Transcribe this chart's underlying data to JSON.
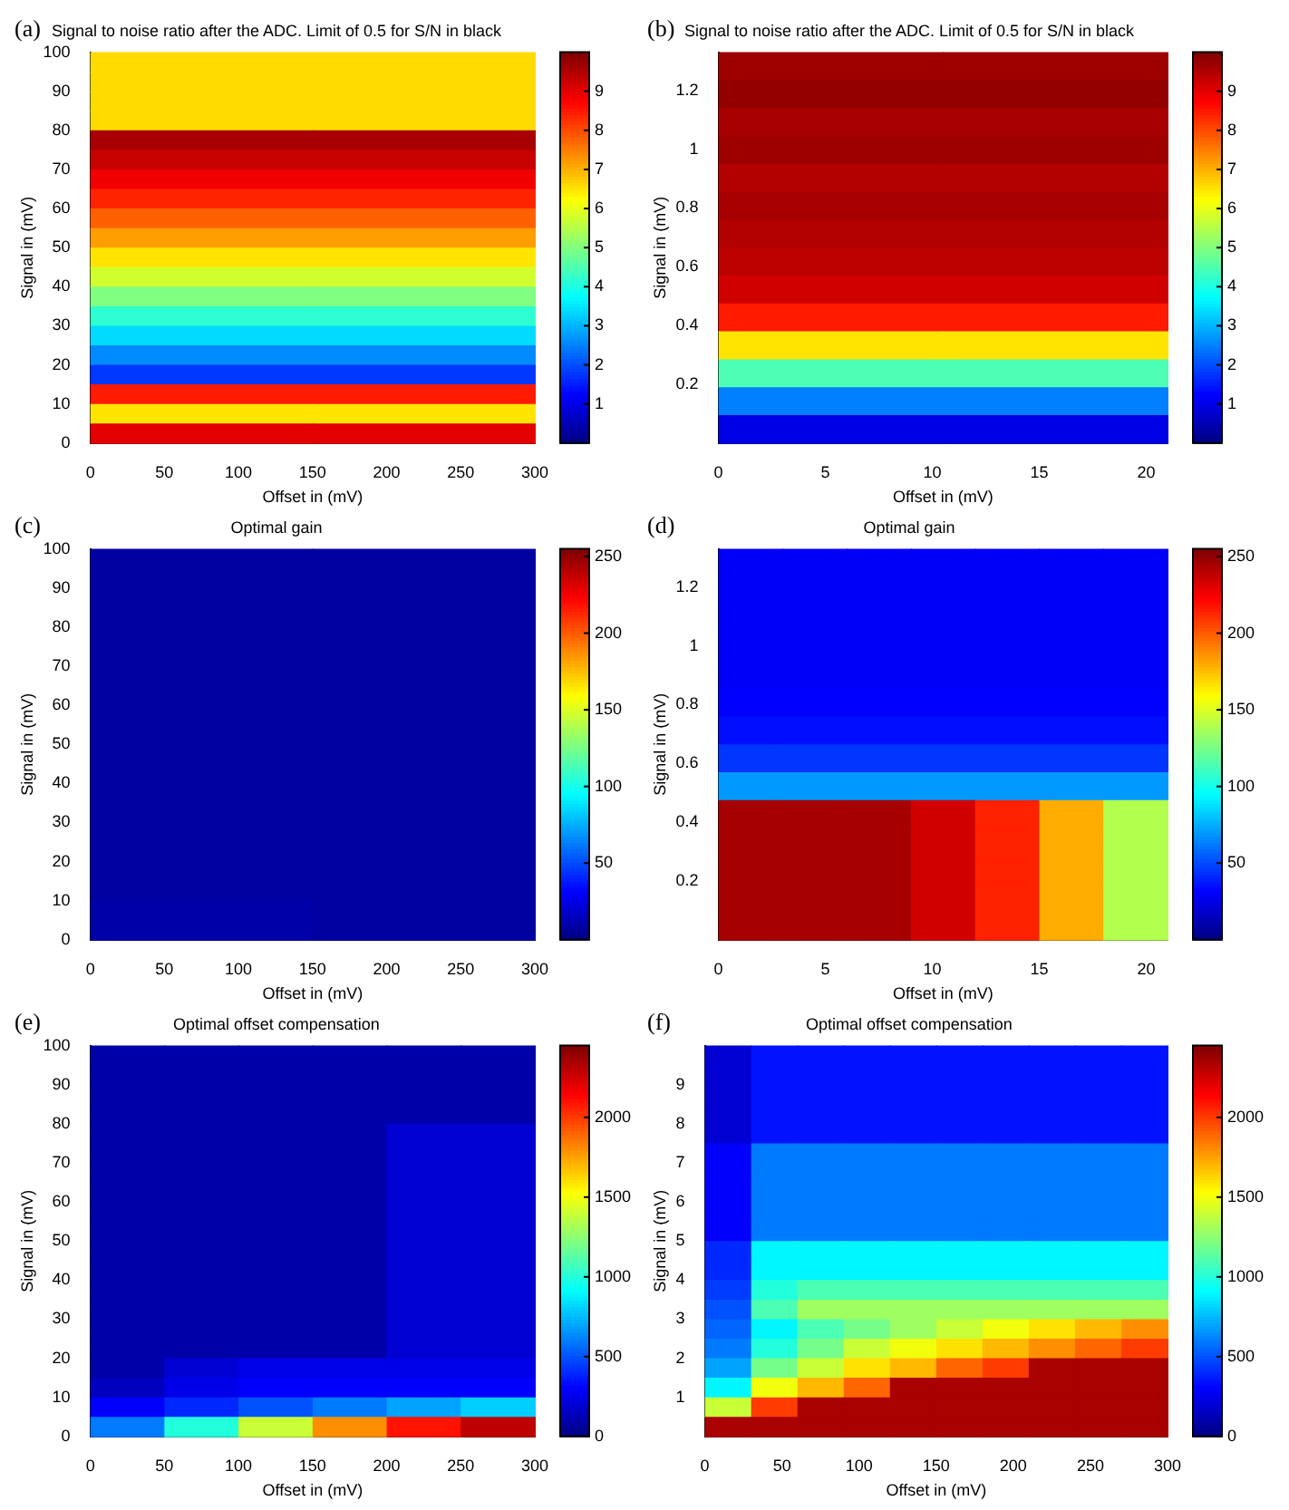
{
  "chart_data": [
    {
      "type": "heatmap",
      "title": "Signal to noise ratio after the ADC. Limit of 0.5 for S/N in black",
      "xlabel": "Offset in (mV)",
      "ylabel": "Signal in (mV)",
      "annotations": [
        "(a)"
      ],
      "xlim": [
        0,
        300
      ],
      "xticks": [
        0,
        50,
        100,
        150,
        200,
        250,
        300
      ],
      "ylim": [
        0,
        100
      ],
      "yticks": [
        0,
        10,
        20,
        30,
        40,
        50,
        60,
        70,
        80,
        90,
        100
      ],
      "clim": [
        0,
        10
      ],
      "cticks": [
        1,
        2,
        3,
        4,
        5,
        6,
        7,
        8,
        9
      ],
      "x": [
        75,
        225
      ],
      "y": [
        97.5,
        92.5,
        87.5,
        82.5,
        77.5,
        72.5,
        67.5,
        62.5,
        57.5,
        52.5,
        47.5,
        42.5,
        37.5,
        32.5,
        27.5,
        22.5,
        17.5,
        12.5,
        7.5,
        2.5
      ],
      "cells": [
        [
          6.6,
          6.6
        ],
        [
          6.6,
          6.6
        ],
        [
          6.6,
          6.6
        ],
        [
          6.6,
          6.6
        ],
        [
          9.6,
          9.6
        ],
        [
          9.3,
          9.3
        ],
        [
          8.9,
          8.9
        ],
        [
          8.4,
          8.4
        ],
        [
          7.8,
          7.8
        ],
        [
          7.2,
          7.2
        ],
        [
          6.5,
          6.5
        ],
        [
          5.8,
          5.8
        ],
        [
          5,
          5
        ],
        [
          4.2,
          4.2
        ],
        [
          3.4,
          3.4
        ],
        [
          2.6,
          2.6
        ],
        [
          1.8,
          1.8
        ],
        [
          8.5,
          8.5
        ],
        [
          6.5,
          6.5
        ],
        [
          9,
          9
        ]
      ]
    },
    {
      "type": "heatmap",
      "title": "Signal to noise ratio after the ADC. Limit of 0.5 for S/N in black",
      "xlabel": "Offset in (mV)",
      "ylabel": "Signal in (mV)",
      "annotations": [
        "(b)"
      ],
      "xlim": [
        0,
        21
      ],
      "xticks": [
        0,
        5,
        10,
        15,
        20
      ],
      "ylim": [
        0,
        1.33
      ],
      "yticks": [
        0.2,
        0.4,
        0.6,
        0.8,
        1,
        1.2
      ],
      "clim": [
        0,
        10
      ],
      "cticks": [
        1,
        2,
        3,
        4,
        5,
        6,
        7,
        8,
        9
      ],
      "x": [
        5.25,
        15.75
      ],
      "y": [
        1.2825,
        1.1875,
        1.0925,
        0.9975,
        0.9025,
        0.8075,
        0.7125,
        0.6175,
        0.5225,
        0.4275,
        0.3325,
        0.2375,
        0.1425,
        0.0475
      ],
      "cells": [
        [
          9.7,
          9.7
        ],
        [
          9.8,
          9.8
        ],
        [
          9.6,
          9.6
        ],
        [
          9.7,
          9.7
        ],
        [
          9.5,
          9.5
        ],
        [
          9.6,
          9.6
        ],
        [
          9.5,
          9.5
        ],
        [
          9.4,
          9.4
        ],
        [
          9.2,
          9.2
        ],
        [
          8.5,
          8.5
        ],
        [
          6.5,
          6.5
        ],
        [
          4.5,
          4.5
        ],
        [
          2.5,
          2.5
        ],
        [
          1,
          1
        ]
      ]
    },
    {
      "type": "heatmap",
      "title": "Optimal gain",
      "xlabel": "Offset in (mV)",
      "ylabel": "Signal in (mV)",
      "annotations": [
        "(c)"
      ],
      "xlim": [
        0,
        300
      ],
      "xticks": [
        0,
        50,
        100,
        150,
        200,
        250,
        300
      ],
      "ylim": [
        0,
        100
      ],
      "yticks": [
        0,
        10,
        20,
        30,
        40,
        50,
        60,
        70,
        80,
        90,
        100
      ],
      "clim": [
        0,
        255
      ],
      "cticks": [
        50,
        100,
        150,
        200,
        250
      ],
      "x": [
        75,
        225
      ],
      "y": [
        95,
        85,
        75,
        65,
        55,
        45,
        35,
        25,
        15,
        5
      ],
      "cells": [
        [
          8,
          8
        ],
        [
          8,
          8
        ],
        [
          8,
          8
        ],
        [
          8,
          8
        ],
        [
          8,
          8
        ],
        [
          8,
          8
        ],
        [
          8,
          8
        ],
        [
          8,
          8
        ],
        [
          8,
          8
        ],
        [
          10,
          8
        ]
      ]
    },
    {
      "type": "heatmap",
      "title": "Optimal gain",
      "xlabel": "Offset in (mV)",
      "ylabel": "Signal in (mV)",
      "annotations": [
        "(d)"
      ],
      "xlim": [
        0,
        21
      ],
      "xticks": [
        0,
        5,
        10,
        15,
        20
      ],
      "ylim": [
        0,
        1.33
      ],
      "yticks": [
        0.2,
        0.4,
        0.6,
        0.8,
        1,
        1.2
      ],
      "clim": [
        0,
        255
      ],
      "cticks": [
        50,
        100,
        150,
        200,
        250
      ],
      "x": [
        1.5,
        4.5,
        7.5,
        10.5,
        13.5,
        16.5,
        19.5
      ],
      "y": [
        1.2825,
        1.1875,
        1.0925,
        0.9975,
        0.9025,
        0.8075,
        0.7125,
        0.6175,
        0.5225,
        0.4275,
        0.3325,
        0.2375,
        0.1425,
        0.0475
      ],
      "cells": [
        [
          30,
          30,
          30,
          30,
          30,
          30,
          30
        ],
        [
          30,
          30,
          30,
          30,
          30,
          30,
          30
        ],
        [
          30,
          30,
          30,
          30,
          30,
          30,
          30
        ],
        [
          30,
          30,
          30,
          30,
          30,
          30,
          30
        ],
        [
          30,
          30,
          30,
          30,
          30,
          30,
          30
        ],
        [
          32,
          32,
          32,
          32,
          32,
          32,
          32
        ],
        [
          35,
          35,
          35,
          35,
          35,
          35,
          35
        ],
        [
          45,
          45,
          45,
          45,
          45,
          45,
          45
        ],
        [
          70,
          70,
          70,
          70,
          70,
          70,
          70
        ],
        [
          245,
          245,
          245,
          235,
          215,
          180,
          140
        ],
        [
          245,
          245,
          245,
          235,
          215,
          180,
          140
        ],
        [
          245,
          245,
          245,
          235,
          215,
          180,
          140
        ],
        [
          245,
          245,
          245,
          235,
          215,
          180,
          140
        ],
        [
          245,
          245,
          245,
          235,
          215,
          180,
          140
        ]
      ]
    },
    {
      "type": "heatmap",
      "title": "Optimal offset compensation",
      "xlabel": "Offset in (mV)",
      "ylabel": "Signal in (mV)",
      "annotations": [
        "(e)"
      ],
      "xlim": [
        0,
        300
      ],
      "xticks": [
        0,
        50,
        100,
        150,
        200,
        250,
        300
      ],
      "ylim": [
        0,
        100
      ],
      "yticks": [
        0,
        10,
        20,
        30,
        40,
        50,
        60,
        70,
        80,
        90,
        100
      ],
      "clim": [
        0,
        2450
      ],
      "cticks": [
        0,
        500,
        1000,
        1500,
        2000
      ],
      "x": [
        25,
        75,
        125,
        175,
        225,
        275
      ],
      "y": [
        97.5,
        92.5,
        87.5,
        82.5,
        77.5,
        72.5,
        67.5,
        62.5,
        57.5,
        52.5,
        47.5,
        42.5,
        37.5,
        32.5,
        27.5,
        22.5,
        17.5,
        12.5,
        7.5,
        2.5
      ],
      "cells": [
        [
          100,
          100,
          100,
          100,
          100,
          100
        ],
        [
          100,
          100,
          100,
          100,
          100,
          100
        ],
        [
          100,
          100,
          100,
          100,
          100,
          100
        ],
        [
          100,
          100,
          100,
          100,
          100,
          100
        ],
        [
          100,
          100,
          100,
          100,
          200,
          200
        ],
        [
          100,
          100,
          100,
          100,
          200,
          200
        ],
        [
          100,
          100,
          100,
          100,
          200,
          200
        ],
        [
          100,
          100,
          100,
          100,
          200,
          200
        ],
        [
          100,
          100,
          100,
          100,
          200,
          200
        ],
        [
          100,
          100,
          100,
          100,
          200,
          200
        ],
        [
          100,
          100,
          100,
          100,
          200,
          200
        ],
        [
          100,
          100,
          100,
          100,
          200,
          200
        ],
        [
          100,
          100,
          100,
          100,
          200,
          200
        ],
        [
          100,
          100,
          100,
          100,
          200,
          200
        ],
        [
          100,
          100,
          100,
          100,
          200,
          200
        ],
        [
          100,
          100,
          100,
          100,
          200,
          200
        ],
        [
          100,
          200,
          250,
          250,
          250,
          250
        ],
        [
          150,
          250,
          300,
          300,
          300,
          300
        ],
        [
          300,
          400,
          500,
          600,
          700,
          800
        ],
        [
          600,
          1000,
          1400,
          1800,
          2100,
          2300
        ]
      ]
    },
    {
      "type": "heatmap",
      "title": "Optimal offset compensation",
      "xlabel": "Offset in (mV)",
      "ylabel": "Signal in (mV)",
      "annotations": [
        "(f)"
      ],
      "xlim": [
        0,
        300
      ],
      "xticks": [
        0,
        50,
        100,
        150,
        200,
        250,
        300
      ],
      "ylim": [
        0,
        10
      ],
      "yticks": [
        1,
        2,
        3,
        4,
        5,
        6,
        7,
        8,
        9
      ],
      "clim": [
        0,
        2450
      ],
      "cticks": [
        0,
        500,
        1000,
        1500,
        2000
      ],
      "x": [
        15,
        45,
        75,
        105,
        135,
        165,
        195,
        225,
        255,
        285
      ],
      "y": [
        9.75,
        9.25,
        8.75,
        8.25,
        7.75,
        7.25,
        6.75,
        6.25,
        5.75,
        5.25,
        4.75,
        4.25,
        3.75,
        3.25,
        2.75,
        2.25,
        1.75,
        1.25,
        0.75,
        0.25
      ],
      "cells": [
        [
          200,
          350,
          350,
          350,
          350,
          350,
          350,
          350,
          350,
          350
        ],
        [
          200,
          350,
          350,
          350,
          350,
          350,
          350,
          350,
          350,
          350
        ],
        [
          200,
          350,
          350,
          350,
          350,
          350,
          350,
          350,
          350,
          350
        ],
        [
          200,
          350,
          350,
          350,
          350,
          350,
          350,
          350,
          350,
          350
        ],
        [
          200,
          350,
          350,
          350,
          350,
          350,
          350,
          350,
          350,
          350
        ],
        [
          300,
          600,
          600,
          600,
          600,
          600,
          600,
          600,
          600,
          600
        ],
        [
          300,
          600,
          600,
          600,
          600,
          600,
          600,
          600,
          600,
          600
        ],
        [
          300,
          600,
          600,
          600,
          600,
          600,
          600,
          600,
          600,
          600
        ],
        [
          300,
          600,
          600,
          600,
          600,
          600,
          600,
          600,
          600,
          600
        ],
        [
          300,
          600,
          600,
          600,
          600,
          600,
          600,
          600,
          600,
          600
        ],
        [
          400,
          900,
          900,
          900,
          900,
          900,
          900,
          900,
          900,
          900
        ],
        [
          400,
          900,
          900,
          900,
          900,
          900,
          900,
          900,
          900,
          900
        ],
        [
          450,
          1000,
          1100,
          1100,
          1100,
          1100,
          1100,
          1100,
          1100,
          1100
        ],
        [
          500,
          1100,
          1300,
          1300,
          1300,
          1300,
          1300,
          1300,
          1300,
          1300
        ],
        [
          550,
          900,
          1100,
          1200,
          1300,
          1400,
          1500,
          1600,
          1700,
          1800
        ],
        [
          600,
          1000,
          1200,
          1400,
          1500,
          1600,
          1700,
          1800,
          1900,
          2000
        ],
        [
          700,
          1200,
          1400,
          1600,
          1700,
          1900,
          2000,
          2350,
          2350,
          2350
        ],
        [
          900,
          1500,
          1700,
          1900,
          2350,
          2350,
          2350,
          2350,
          2350,
          2350
        ],
        [
          1400,
          2000,
          2350,
          2350,
          2350,
          2350,
          2350,
          2350,
          2350,
          2350
        ],
        [
          2350,
          2350,
          2350,
          2350,
          2350,
          2350,
          2350,
          2350,
          2350,
          2350
        ]
      ]
    }
  ]
}
